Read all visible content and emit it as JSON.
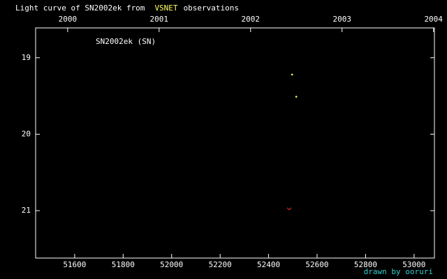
{
  "chart_data": {
    "type": "scatter",
    "title": "Light curve of SN2002ek from",
    "title_highlight": "VSNET",
    "title_suffix": "observations",
    "label": "SN2002ek (SN)",
    "credit": "drawn by ooruri",
    "xlim": [
      51439,
      53084
    ],
    "xticks": [
      51600,
      51800,
      52000,
      52200,
      52400,
      52600,
      52800,
      53000
    ],
    "x2lim": [
      1999.65,
      2004.01
    ],
    "x2ticks": [
      2000,
      2001,
      2002,
      2003,
      2004
    ],
    "ylim": [
      21.62,
      18.61
    ],
    "yticks": [
      19,
      20,
      21
    ],
    "series": [
      {
        "color": "#ffff66",
        "marker": "dot",
        "x": [
          52497,
          52514
        ],
        "values": [
          19.22,
          19.51
        ]
      },
      {
        "color": "#ff3030",
        "marker": "v",
        "x": [
          52485
        ],
        "values": [
          20.98
        ]
      }
    ]
  }
}
